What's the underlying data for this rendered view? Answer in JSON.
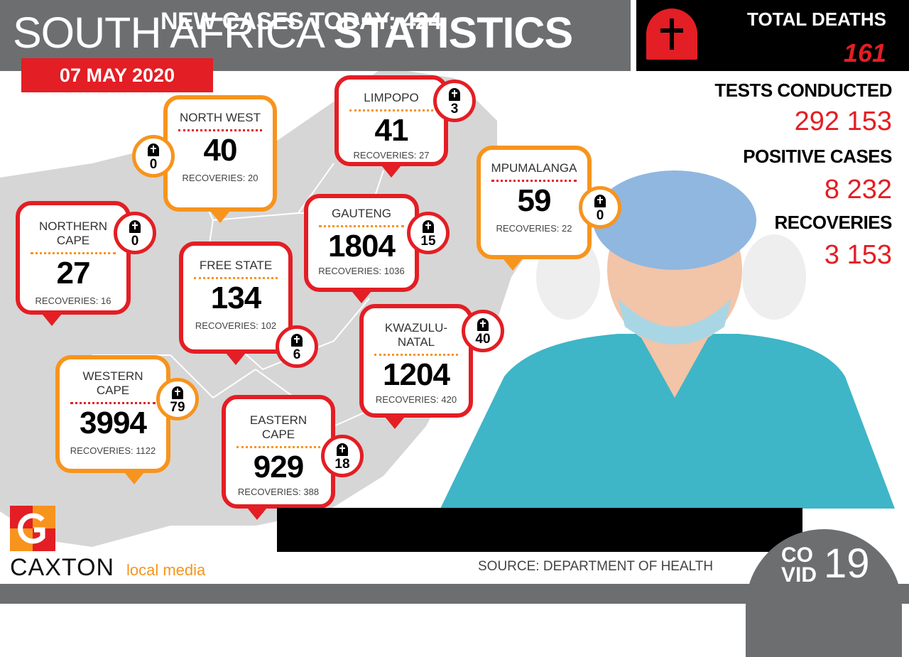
{
  "header": {
    "title_light": "SOUTH AFRICA ",
    "title_bold": "STATISTICS",
    "date": "07 MAY 2020"
  },
  "totals": {
    "deaths_label": "TOTAL DEATHS",
    "deaths_value": "161",
    "tests_label": "TESTS CONDUCTED",
    "tests_value": "292 153",
    "positive_label": "POSITIVE CASES",
    "positive_value": "8 232",
    "recoveries_label": "RECOVERIES",
    "recoveries_value": "3 153"
  },
  "provinces": {
    "north_west": {
      "name": "NORTH WEST",
      "cases": "40",
      "recoveries": "RECOVERIES: 20",
      "deaths": "0"
    },
    "limpopo": {
      "name": "LIMPOPO",
      "cases": "41",
      "recoveries": "RECOVERIES: 27",
      "deaths": "3"
    },
    "mpumalanga": {
      "name": "MPUMALANGA",
      "cases": "59",
      "recoveries": "RECOVERIES: 22",
      "deaths": "0"
    },
    "northern_cape": {
      "name": "NORTHERN\nCAPE",
      "cases": "27",
      "recoveries": "RECOVERIES: 16",
      "deaths": "0"
    },
    "gauteng": {
      "name": "GAUTENG",
      "cases": "1804",
      "recoveries": "RECOVERIES: 1036",
      "deaths": "15"
    },
    "free_state": {
      "name": "FREE STATE",
      "cases": "134",
      "recoveries": "RECOVERIES: 102",
      "deaths": "6"
    },
    "kwazulu_natal": {
      "name": "KWAZULU-\nNATAL",
      "cases": "1204",
      "recoveries": "RECOVERIES: 420",
      "deaths": "40"
    },
    "western_cape": {
      "name": "WESTERN\nCAPE",
      "cases": "3994",
      "recoveries": "RECOVERIES: 1122",
      "deaths": "79"
    },
    "eastern_cape": {
      "name": "EASTERN\nCAPE",
      "cases": "929",
      "recoveries": "RECOVERIES: 388",
      "deaths": "18"
    }
  },
  "footer": {
    "new_cases": "NEW CASES TODAY: 424",
    "source": "SOURCE: DEPARTMENT OF HEALTH",
    "brand": "CAXTON",
    "brand_sub": "local media",
    "covid_co": "CO",
    "covid_vid": "VID",
    "covid_19": "19"
  },
  "colors": {
    "red": "#e31e24",
    "orange": "#f7941d",
    "grey": "#6d6e70"
  },
  "icons": [
    "tombstone-icon",
    "caxton-logo-icon",
    "covid-badge-icon"
  ]
}
